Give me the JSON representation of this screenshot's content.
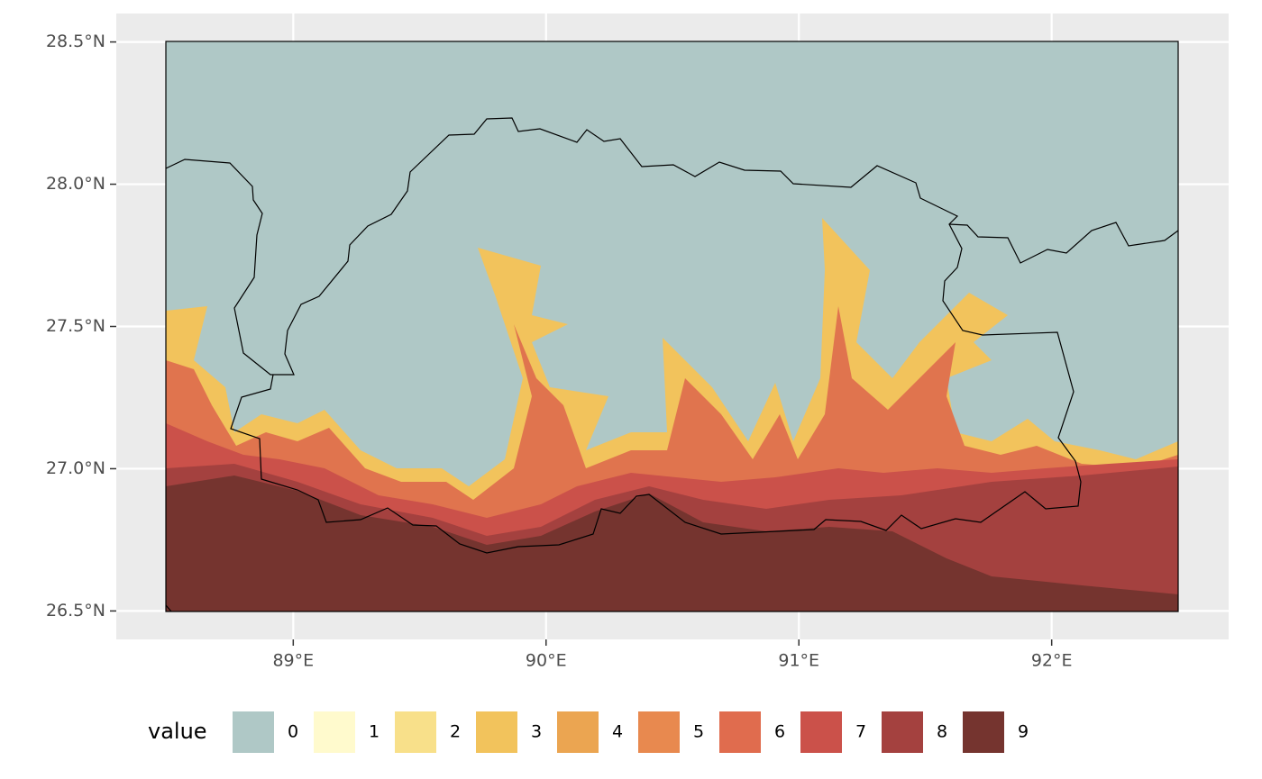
{
  "map": {
    "xlim": [
      88.3,
      92.7
    ],
    "ylim": [
      26.4,
      28.6
    ],
    "xticks": [
      {
        "value": 89,
        "label": "89°E"
      },
      {
        "value": 90,
        "label": "90°E"
      },
      {
        "value": 91,
        "label": "91°E"
      },
      {
        "value": 92,
        "label": "92°E"
      }
    ],
    "yticks": [
      {
        "value": 26.5,
        "label": "26.5°N"
      },
      {
        "value": 27,
        "label": "27.0°N"
      },
      {
        "value": 27.5,
        "label": "27.5°N"
      },
      {
        "value": 28,
        "label": "28.0°N"
      },
      {
        "value": 28.5,
        "label": "28.5°N"
      }
    ],
    "grid": true,
    "legend": {
      "title": "value",
      "labels": [
        "0",
        "1",
        "2",
        "3",
        "4",
        "5",
        "6",
        "7",
        "8",
        "9"
      ],
      "colors": [
        "#afc8c6",
        "#fffacd",
        "#f8e08a",
        "#f2c35c",
        "#eba551",
        "#e8894f",
        "#e06c4e",
        "#cb514a",
        "#a4413f",
        "#75342f"
      ]
    }
  }
}
